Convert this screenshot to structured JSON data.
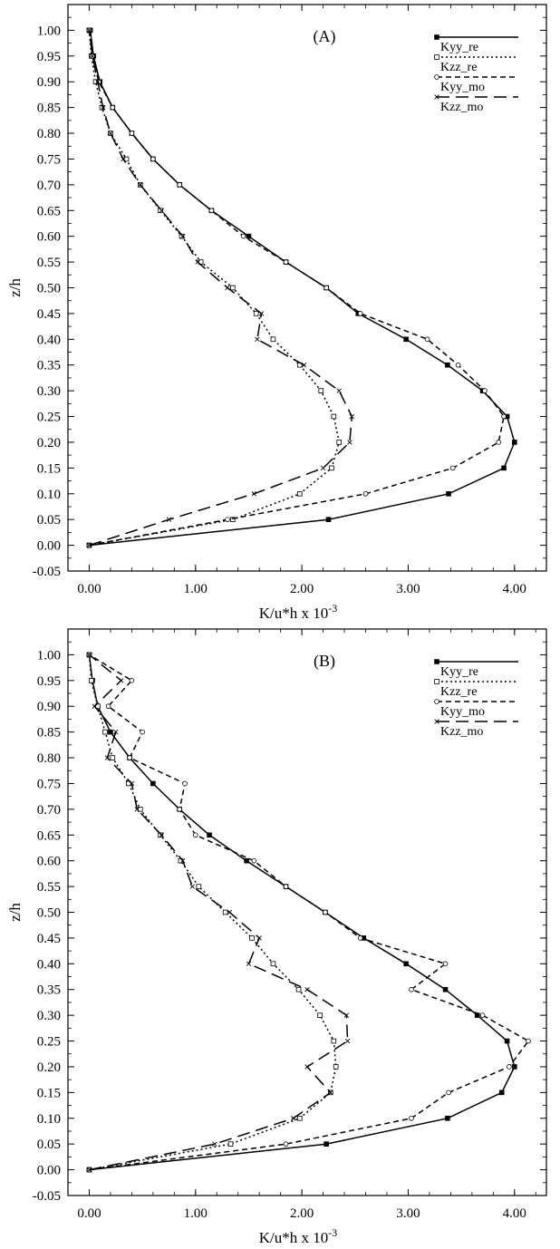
{
  "chart_data": [
    {
      "type": "line",
      "panel_label": "(A)",
      "xlabel": "K/u*h x 10",
      "xlabel_exponent": "-3",
      "ylabel": "z/h",
      "xlim": [
        -0.2,
        4.3
      ],
      "ylim": [
        -0.05,
        1.05
      ],
      "x_ticks": [
        "0.00",
        "1.00",
        "2.00",
        "3.00",
        "4.00"
      ],
      "y_ticks": [
        "-0.05",
        "0.00",
        "0.05",
        "0.10",
        "0.15",
        "0.20",
        "0.25",
        "0.30",
        "0.35",
        "0.40",
        "0.45",
        "0.50",
        "0.55",
        "0.60",
        "0.65",
        "0.70",
        "0.75",
        "0.80",
        "0.85",
        "0.90",
        "0.95",
        "1.00"
      ],
      "legend_position": "top-right",
      "series": [
        {
          "name": "Kyy_re",
          "style": "solid",
          "marker": "square-filled",
          "x": [
            0.0,
            2.25,
            3.38,
            3.9,
            4.0,
            3.93,
            3.7,
            3.37,
            2.98,
            2.53,
            2.23,
            1.85,
            1.5,
            1.15,
            0.85,
            0.6,
            0.4,
            0.22,
            0.1,
            0.04,
            0.01,
            0.0
          ],
          "y": [
            0.0,
            0.05,
            0.1,
            0.15,
            0.2,
            0.25,
            0.3,
            0.35,
            0.4,
            0.45,
            0.5,
            0.55,
            0.6,
            0.65,
            0.7,
            0.75,
            0.8,
            0.85,
            0.9,
            0.95,
            1.0,
            1.0
          ]
        },
        {
          "name": "Kzz_re",
          "style": "dotted",
          "marker": "square-open",
          "x": [
            0.0,
            1.35,
            1.98,
            2.28,
            2.35,
            2.3,
            2.18,
            1.98,
            1.73,
            1.57,
            1.35,
            1.05,
            0.87,
            0.67,
            0.48,
            0.35,
            0.2,
            0.12,
            0.06,
            0.02,
            0.0
          ],
          "y": [
            0.0,
            0.05,
            0.1,
            0.15,
            0.2,
            0.25,
            0.3,
            0.35,
            0.4,
            0.45,
            0.5,
            0.55,
            0.6,
            0.65,
            0.7,
            0.75,
            0.8,
            0.85,
            0.9,
            0.95,
            1.0
          ]
        },
        {
          "name": "Kyy_mo",
          "style": "short-dash",
          "marker": "circle-open",
          "x": [
            0.0,
            1.3,
            2.6,
            3.42,
            3.85,
            3.9,
            3.72,
            3.47,
            3.18,
            2.55,
            2.23,
            1.85,
            1.45,
            1.15,
            0.85,
            0.6,
            0.4,
            0.22,
            0.09,
            0.03,
            0.0
          ],
          "y": [
            0.0,
            0.05,
            0.1,
            0.15,
            0.2,
            0.25,
            0.3,
            0.35,
            0.4,
            0.45,
            0.5,
            0.55,
            0.6,
            0.65,
            0.7,
            0.75,
            0.8,
            0.85,
            0.9,
            0.95,
            1.0
          ]
        },
        {
          "name": "Kzz_mo",
          "style": "long-dash",
          "marker": "cross",
          "x": [
            0.0,
            0.75,
            1.55,
            2.2,
            2.45,
            2.47,
            2.35,
            2.02,
            1.58,
            1.62,
            1.3,
            1.02,
            0.88,
            0.68,
            0.48,
            0.32,
            0.2,
            0.13,
            0.08,
            0.03,
            0.0
          ],
          "y": [
            0.0,
            0.05,
            0.1,
            0.15,
            0.2,
            0.25,
            0.3,
            0.35,
            0.4,
            0.45,
            0.5,
            0.55,
            0.6,
            0.65,
            0.7,
            0.75,
            0.8,
            0.85,
            0.9,
            0.95,
            1.0
          ]
        }
      ]
    },
    {
      "type": "line",
      "panel_label": "(B)",
      "xlabel": "K/u*h x 10",
      "xlabel_exponent": "-3",
      "ylabel": "z/h",
      "xlim": [
        -0.2,
        4.3
      ],
      "ylim": [
        -0.05,
        1.05
      ],
      "x_ticks": [
        "0.00",
        "1.00",
        "2.00",
        "3.00",
        "4.00"
      ],
      "y_ticks": [
        "-0.05",
        "0.00",
        "0.05",
        "0.10",
        "0.15",
        "0.20",
        "0.25",
        "0.30",
        "0.35",
        "0.40",
        "0.45",
        "0.50",
        "0.55",
        "0.60",
        "0.65",
        "0.70",
        "0.75",
        "0.80",
        "0.85",
        "0.90",
        "0.95",
        "1.00"
      ],
      "legend_position": "top-right",
      "series": [
        {
          "name": "Kyy_re",
          "style": "solid",
          "marker": "square-filled",
          "x": [
            0.0,
            2.23,
            3.37,
            3.88,
            4.0,
            3.93,
            3.65,
            3.35,
            2.98,
            2.58,
            2.22,
            1.85,
            1.48,
            1.13,
            0.85,
            0.6,
            0.38,
            0.2,
            0.08,
            0.03,
            0.0
          ],
          "y": [
            0.0,
            0.05,
            0.1,
            0.15,
            0.2,
            0.25,
            0.3,
            0.35,
            0.4,
            0.45,
            0.5,
            0.55,
            0.6,
            0.65,
            0.7,
            0.75,
            0.8,
            0.85,
            0.9,
            0.95,
            1.0
          ]
        },
        {
          "name": "Kzz_re",
          "style": "dotted",
          "marker": "square-open",
          "x": [
            0.0,
            1.33,
            1.98,
            2.27,
            2.32,
            2.3,
            2.17,
            1.97,
            1.73,
            1.53,
            1.28,
            1.03,
            0.86,
            0.67,
            0.48,
            0.37,
            0.22,
            0.15,
            0.08,
            0.02,
            0.0
          ],
          "y": [
            0.0,
            0.05,
            0.1,
            0.15,
            0.2,
            0.25,
            0.3,
            0.35,
            0.4,
            0.45,
            0.5,
            0.55,
            0.6,
            0.65,
            0.7,
            0.75,
            0.8,
            0.85,
            0.9,
            0.95,
            1.0
          ]
        },
        {
          "name": "Kyy_mo",
          "style": "short-dash",
          "marker": "circle-open",
          "x": [
            0.0,
            1.85,
            3.03,
            3.38,
            3.95,
            4.13,
            3.7,
            3.03,
            3.35,
            2.55,
            2.22,
            1.85,
            1.55,
            1.0,
            0.85,
            0.9,
            0.38,
            0.5,
            0.18,
            0.4,
            0.0
          ],
          "y": [
            0.0,
            0.05,
            0.1,
            0.15,
            0.2,
            0.25,
            0.3,
            0.35,
            0.4,
            0.45,
            0.5,
            0.55,
            0.6,
            0.65,
            0.7,
            0.75,
            0.8,
            0.85,
            0.9,
            0.95,
            1.0
          ]
        },
        {
          "name": "Kzz_mo",
          "style": "long-dash",
          "marker": "cross",
          "x": [
            0.0,
            1.18,
            1.92,
            2.27,
            2.05,
            2.43,
            2.42,
            2.05,
            1.5,
            1.6,
            1.32,
            0.97,
            0.88,
            0.68,
            0.45,
            0.4,
            0.17,
            0.25,
            0.05,
            0.3,
            0.0
          ],
          "y": [
            0.0,
            0.05,
            0.1,
            0.15,
            0.2,
            0.25,
            0.3,
            0.35,
            0.4,
            0.45,
            0.5,
            0.55,
            0.6,
            0.65,
            0.7,
            0.75,
            0.8,
            0.85,
            0.9,
            0.95,
            1.0
          ]
        }
      ]
    }
  ]
}
